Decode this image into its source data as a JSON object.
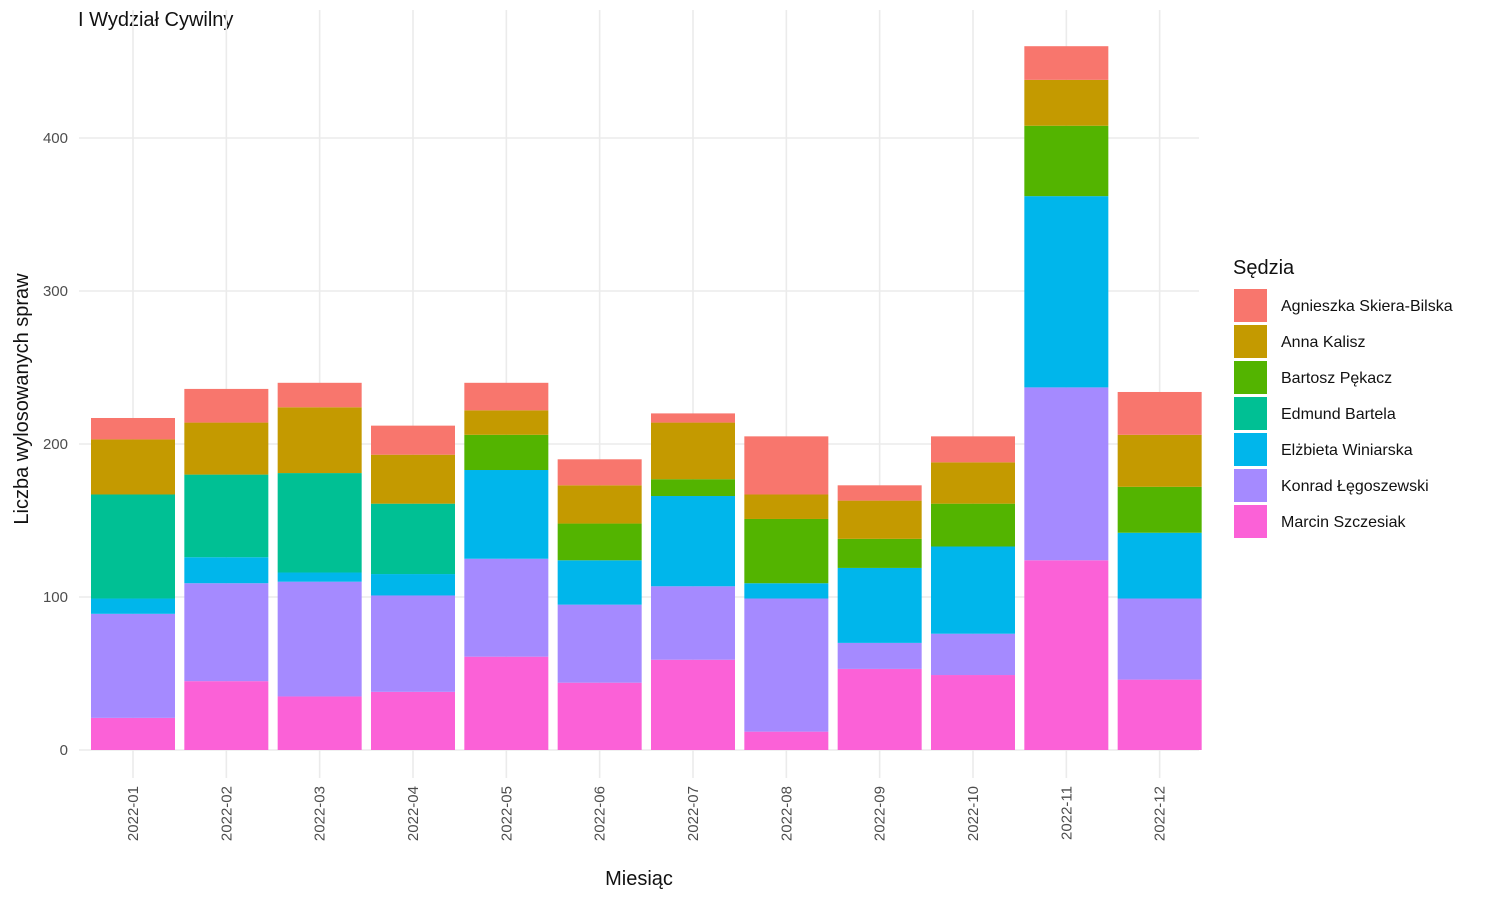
{
  "chart_data": {
    "type": "bar",
    "stacked": true,
    "title": "I Wydział Cywilny",
    "xlabel": "Miesiąc",
    "ylabel": "Liczba wylosowanych spraw",
    "ylim": [
      0,
      470
    ],
    "yticks": [
      0,
      100,
      200,
      300,
      400
    ],
    "grid": true,
    "legend": {
      "title": "Sędzia",
      "position": "right"
    },
    "categories": [
      "2022-01",
      "2022-02",
      "2022-03",
      "2022-04",
      "2022-05",
      "2022-06",
      "2022-07",
      "2022-08",
      "2022-09",
      "2022-10",
      "2022-11",
      "2022-12"
    ],
    "series": [
      {
        "name": "Agnieszka Skiera-Bilska",
        "color": "#F8766D",
        "values": [
          14,
          22,
          16,
          19,
          18,
          17,
          6,
          38,
          10,
          17,
          22,
          28
        ]
      },
      {
        "name": "Anna Kalisz",
        "color": "#C49A00",
        "values": [
          36,
          34,
          43,
          32,
          16,
          25,
          37,
          16,
          25,
          27,
          30,
          34
        ]
      },
      {
        "name": "Bartosz Pękacz",
        "color": "#53B400",
        "values": [
          0,
          0,
          0,
          0,
          23,
          24,
          11,
          42,
          19,
          28,
          46,
          30
        ]
      },
      {
        "name": "Edmund Bartela",
        "color": "#00C094",
        "values": [
          68,
          54,
          65,
          46,
          0,
          0,
          0,
          0,
          0,
          0,
          0,
          0
        ]
      },
      {
        "name": "Elżbieta Winiarska",
        "color": "#00B6EB",
        "values": [
          10,
          17,
          6,
          14,
          58,
          29,
          59,
          10,
          49,
          57,
          125,
          43
        ]
      },
      {
        "name": "Konrad Łęgoszewski",
        "color": "#A58AFF",
        "values": [
          68,
          64,
          75,
          63,
          64,
          51,
          48,
          87,
          17,
          27,
          113,
          53
        ]
      },
      {
        "name": "Marcin Szczesiak",
        "color": "#FB61D7",
        "values": [
          21,
          45,
          35,
          38,
          61,
          44,
          59,
          12,
          53,
          49,
          124,
          46
        ]
      }
    ]
  }
}
